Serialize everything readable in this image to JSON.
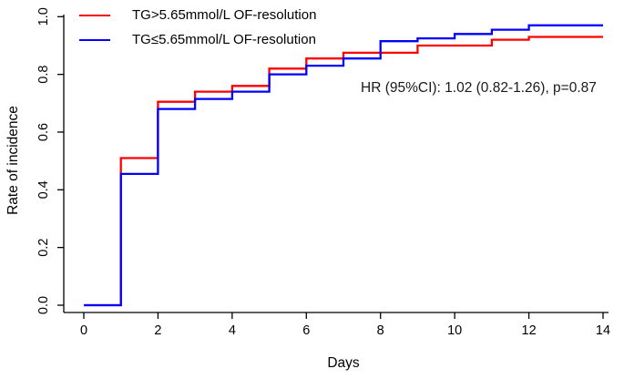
{
  "figure": {
    "background": "#ffffff",
    "axis_color": "#000000"
  },
  "chart_data": {
    "type": "line",
    "subtype": "step-cumulative-incidence",
    "title": "",
    "xlabel": "Days",
    "ylabel": "Rate of incidence",
    "xlim": [
      0,
      14
    ],
    "ylim": [
      0.0,
      1.0
    ],
    "grid": false,
    "legend_position": "top-left",
    "x_ticks": [
      0,
      2,
      4,
      6,
      8,
      10,
      12,
      14
    ],
    "x_tick_labels": [
      "0",
      "2",
      "4",
      "6",
      "8",
      "10",
      "12",
      "14"
    ],
    "y_ticks": [
      0.0,
      0.2,
      0.4,
      0.6,
      0.8,
      1.0
    ],
    "y_tick_labels": [
      "0.0",
      "0.2",
      "0.4",
      "0.6",
      "0.8",
      "1.0"
    ],
    "x": [
      0,
      1,
      2,
      3,
      4,
      5,
      6,
      7,
      8,
      9,
      10,
      11,
      12,
      13,
      14
    ],
    "series": [
      {
        "name": "TG>5.65mmol/L OF-resolution",
        "color": "#ff0000",
        "values": [
          0,
          0.51,
          0.705,
          0.74,
          0.76,
          0.82,
          0.855,
          0.875,
          0.875,
          0.9,
          0.9,
          0.92,
          0.93,
          0.93,
          0.93
        ]
      },
      {
        "name": "TG≤5.65mmol/L OF-resolution",
        "color": "#0000ff",
        "values": [
          0,
          0.455,
          0.68,
          0.715,
          0.74,
          0.8,
          0.83,
          0.855,
          0.915,
          0.925,
          0.94,
          0.955,
          0.97,
          0.97,
          0.97
        ]
      }
    ],
    "annotation": "HR (95%CI): 1.02 (0.82-1.26), p=0.87"
  }
}
